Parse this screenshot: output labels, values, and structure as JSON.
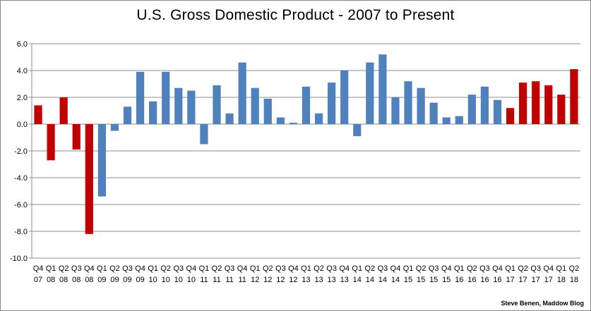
{
  "chart_data": {
    "type": "bar",
    "title": "U.S. Gross Domestic Product - 2007 to Present",
    "xlabel": "",
    "ylabel": "",
    "ylim": [
      -10.0,
      6.0
    ],
    "y_ticks": [
      "6.0",
      "4.0",
      "2.0",
      "0.0",
      "-2.0",
      "-4.0",
      "-6.0",
      "-8.0",
      "-10.0"
    ],
    "y_tick_values": [
      6,
      4,
      2,
      0,
      -2,
      -4,
      -6,
      -8,
      -10
    ],
    "grid": "horizontal",
    "legend": "none",
    "colors": {
      "red": "#c00000",
      "blue": "#4f81bd",
      "grid": "#8c8c8c"
    },
    "categories": [
      {
        "q": "Q4",
        "y": "07"
      },
      {
        "q": "Q1",
        "y": "08"
      },
      {
        "q": "Q2",
        "y": "08"
      },
      {
        "q": "Q3",
        "y": "08"
      },
      {
        "q": "Q4",
        "y": "08"
      },
      {
        "q": "Q1",
        "y": "09"
      },
      {
        "q": "Q2",
        "y": "09"
      },
      {
        "q": "Q3",
        "y": "09"
      },
      {
        "q": "Q4",
        "y": "09"
      },
      {
        "q": "Q1",
        "y": "10"
      },
      {
        "q": "Q2",
        "y": "10"
      },
      {
        "q": "Q3",
        "y": "10"
      },
      {
        "q": "Q4",
        "y": "10"
      },
      {
        "q": "Q1",
        "y": "11"
      },
      {
        "q": "Q2",
        "y": "11"
      },
      {
        "q": "Q3",
        "y": "11"
      },
      {
        "q": "Q4",
        "y": "11"
      },
      {
        "q": "Q1",
        "y": "12"
      },
      {
        "q": "Q2",
        "y": "12"
      },
      {
        "q": "Q3",
        "y": "12"
      },
      {
        "q": "Q4",
        "y": "12"
      },
      {
        "q": "Q1",
        "y": "13"
      },
      {
        "q": "Q2",
        "y": "13"
      },
      {
        "q": "Q3",
        "y": "13"
      },
      {
        "q": "Q4",
        "y": "13"
      },
      {
        "q": "Q1",
        "y": "14"
      },
      {
        "q": "Q2",
        "y": "14"
      },
      {
        "q": "Q3",
        "y": "14"
      },
      {
        "q": "Q4",
        "y": "14"
      },
      {
        "q": "Q1",
        "y": "15"
      },
      {
        "q": "Q2",
        "y": "15"
      },
      {
        "q": "Q3",
        "y": "15"
      },
      {
        "q": "Q4",
        "y": "15"
      },
      {
        "q": "Q1",
        "y": "16"
      },
      {
        "q": "Q2",
        "y": "16"
      },
      {
        "q": "Q3",
        "y": "16"
      },
      {
        "q": "Q4",
        "y": "16"
      },
      {
        "q": "Q1",
        "y": "17"
      },
      {
        "q": "Q2",
        "y": "17"
      },
      {
        "q": "Q3",
        "y": "17"
      },
      {
        "q": "Q4",
        "y": "17"
      },
      {
        "q": "Q1",
        "y": "18"
      },
      {
        "q": "Q2",
        "y": "18"
      }
    ],
    "values": [
      1.4,
      -2.7,
      2.0,
      -1.9,
      -8.2,
      -5.4,
      -0.5,
      1.3,
      3.9,
      1.7,
      3.9,
      2.7,
      2.5,
      -1.5,
      2.9,
      0.8,
      4.6,
      2.7,
      1.9,
      0.5,
      0.1,
      2.8,
      0.8,
      3.1,
      4.0,
      -0.9,
      4.6,
      5.2,
      2.0,
      3.2,
      2.7,
      1.6,
      0.5,
      0.6,
      2.2,
      2.8,
      1.8,
      1.2,
      3.1,
      3.2,
      2.9,
      2.2,
      4.1
    ],
    "bar_colors": [
      "red",
      "red",
      "red",
      "red",
      "red",
      "blue",
      "blue",
      "blue",
      "blue",
      "blue",
      "blue",
      "blue",
      "blue",
      "blue",
      "blue",
      "blue",
      "blue",
      "blue",
      "blue",
      "blue",
      "blue",
      "blue",
      "blue",
      "blue",
      "blue",
      "blue",
      "blue",
      "blue",
      "blue",
      "blue",
      "blue",
      "blue",
      "blue",
      "blue",
      "blue",
      "blue",
      "blue",
      "red",
      "red",
      "red",
      "red",
      "red",
      "red"
    ]
  },
  "credit": "Steve Benen, Maddow Blog"
}
